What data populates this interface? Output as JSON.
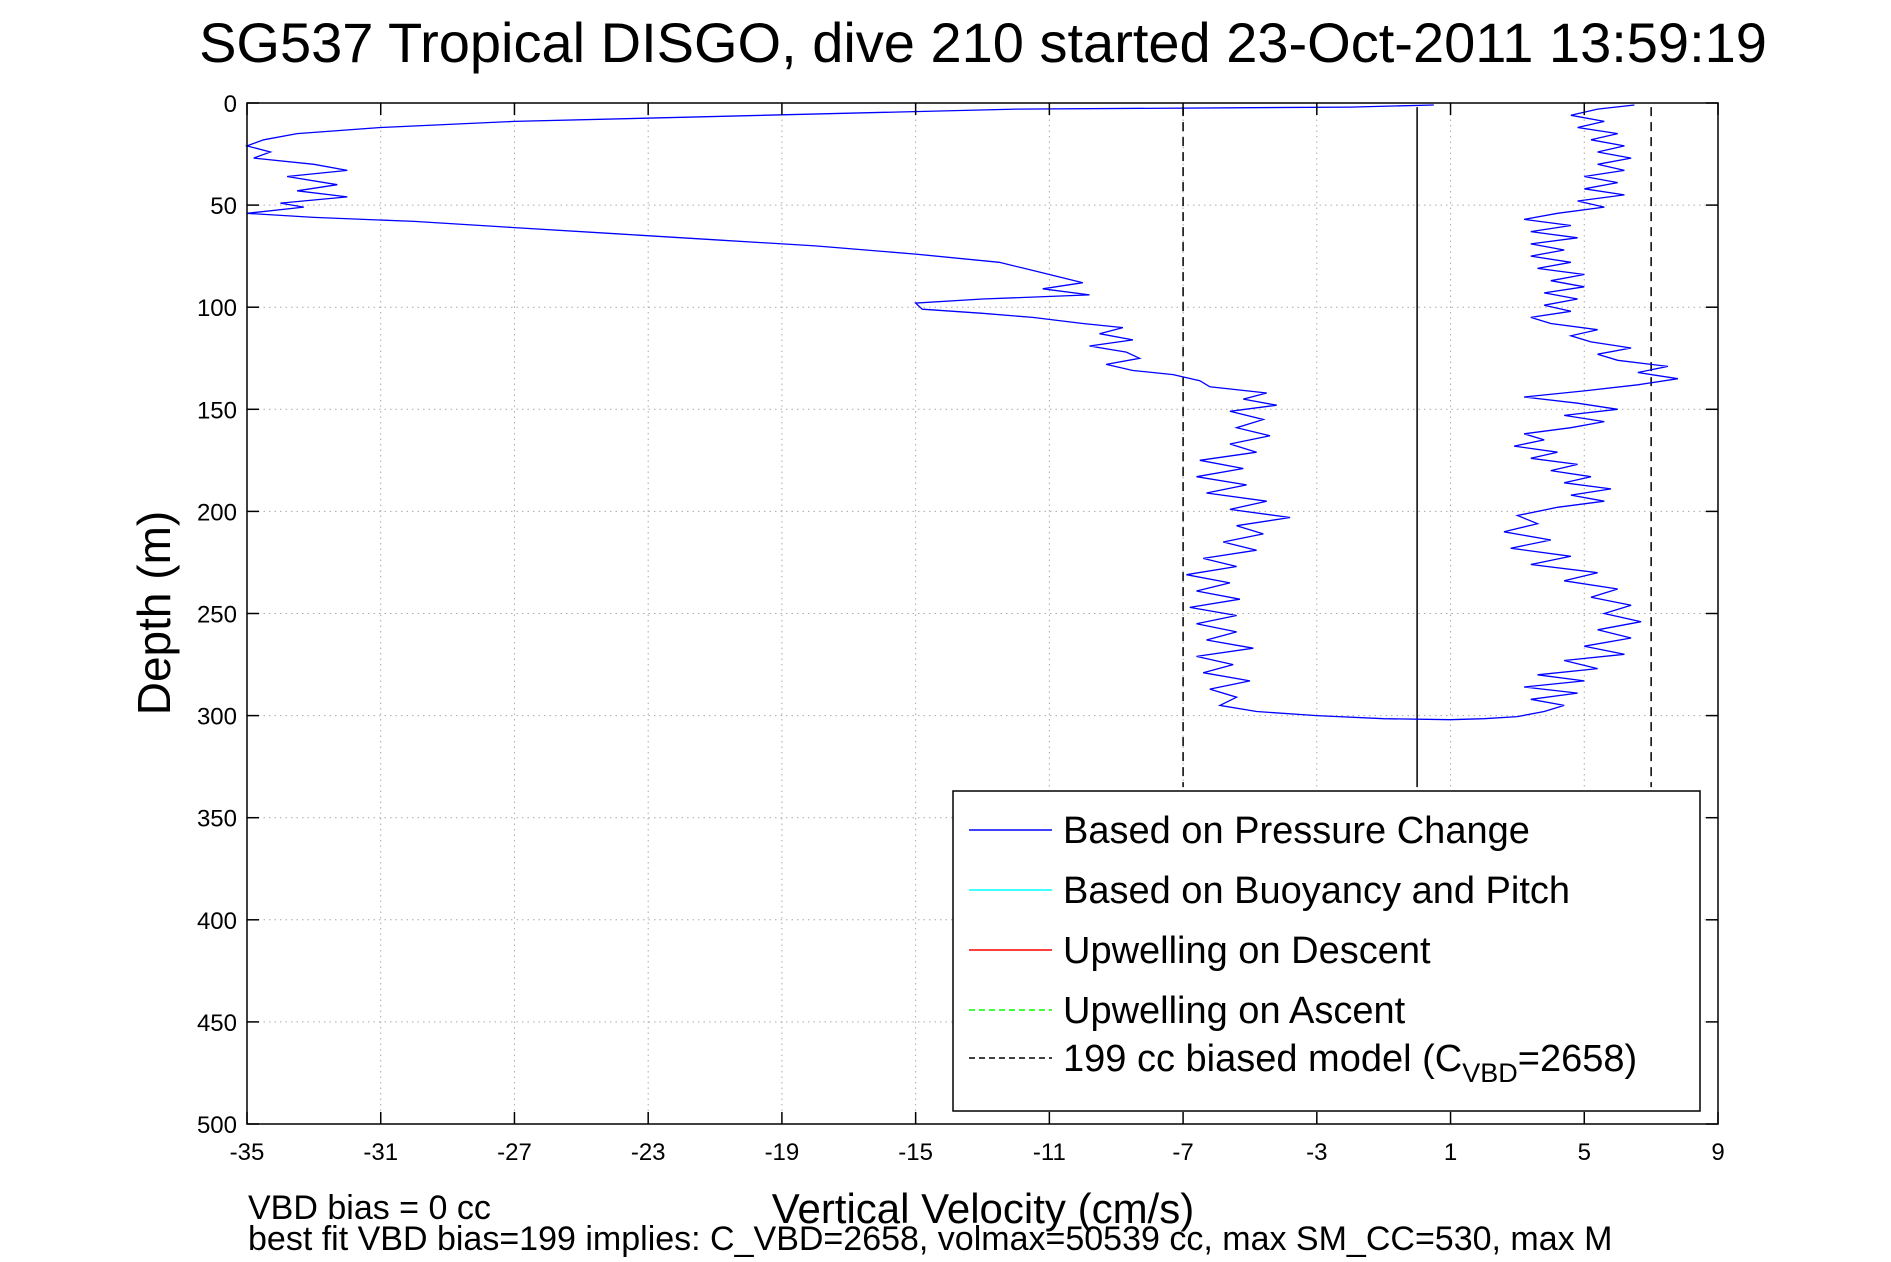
{
  "chart_data": {
    "type": "line",
    "title": "SG537 Tropical DISGO, dive 210 started 23-Oct-2011 13:59:19",
    "xlabel": "Vertical Velocity (cm/s)",
    "ylabel": "Depth (m)",
    "xlim": [
      -35,
      9
    ],
    "ylim": [
      0,
      500
    ],
    "y_reversed": true,
    "x_ticks": [
      -35,
      -31,
      -27,
      -23,
      -19,
      -15,
      -11,
      -7,
      -3,
      1,
      5,
      9
    ],
    "y_ticks": [
      0,
      50,
      100,
      150,
      200,
      250,
      300,
      350,
      400,
      450,
      500
    ],
    "grid": true,
    "legend_placement": "bottom-right",
    "legend": [
      {
        "label": "Based on Pressure Change",
        "color": "#0000ff",
        "dash": "solid"
      },
      {
        "label": "Based on Buoyancy and Pitch",
        "color": "#00ffff",
        "dash": "solid"
      },
      {
        "label": "Upwelling on Descent",
        "color": "#ff0000",
        "dash": "solid"
      },
      {
        "label": "Upwelling on Ascent",
        "color": "#00ff00",
        "dash": "dashed"
      },
      {
        "label_main": "199 cc biased model (C",
        "label_sub": "VBD",
        "label_tail": "=2658)",
        "color": "#000000",
        "dash": "dashed"
      }
    ],
    "reference_lines": [
      {
        "x": -7,
        "dash": "dashed",
        "color": "#000000"
      },
      {
        "x": 7,
        "dash": "dashed",
        "color": "#000000"
      },
      {
        "x": 0,
        "dash": "solid",
        "color": "#000000"
      }
    ],
    "series": [
      {
        "name": "Based on Pressure Change",
        "color": "#0000ff",
        "points": [
          [
            0.5,
            1
          ],
          [
            -2,
            2
          ],
          [
            -12,
            3
          ],
          [
            -17,
            5
          ],
          [
            -22,
            7
          ],
          [
            -27,
            9
          ],
          [
            -31,
            12
          ],
          [
            -33.5,
            15
          ],
          [
            -34.5,
            18
          ],
          [
            -35,
            21
          ],
          [
            -34.3,
            24
          ],
          [
            -34.8,
            27
          ],
          [
            -33,
            30
          ],
          [
            -32,
            33
          ],
          [
            -33.8,
            36
          ],
          [
            -32.3,
            40
          ],
          [
            -33.5,
            43
          ],
          [
            -32,
            46
          ],
          [
            -34,
            49
          ],
          [
            -33.3,
            51
          ],
          [
            -35,
            54
          ],
          [
            -33,
            56
          ],
          [
            -30,
            58
          ],
          [
            -27,
            61
          ],
          [
            -24,
            64
          ],
          [
            -21,
            67
          ],
          [
            -18,
            70
          ],
          [
            -15,
            74
          ],
          [
            -12.5,
            78
          ],
          [
            -11.5,
            82
          ],
          [
            -10.5,
            86
          ],
          [
            -10,
            88
          ],
          [
            -11.2,
            91
          ],
          [
            -9.8,
            94
          ],
          [
            -13,
            96
          ],
          [
            -15,
            98
          ],
          [
            -14.8,
            101
          ],
          [
            -13,
            103
          ],
          [
            -11.5,
            105
          ],
          [
            -10,
            108
          ],
          [
            -8.8,
            110
          ],
          [
            -9.5,
            113
          ],
          [
            -8.5,
            116
          ],
          [
            -9.8,
            119
          ],
          [
            -8.7,
            122
          ],
          [
            -8.3,
            125
          ],
          [
            -9.3,
            128
          ],
          [
            -8.5,
            131
          ],
          [
            -7.3,
            133
          ],
          [
            -6.5,
            136
          ],
          [
            -6.2,
            139
          ],
          [
            -4.5,
            142
          ],
          [
            -5.2,
            145
          ],
          [
            -4.2,
            148
          ],
          [
            -5.6,
            151
          ],
          [
            -4.6,
            155
          ],
          [
            -5.4,
            159
          ],
          [
            -4.4,
            163
          ],
          [
            -5.6,
            167
          ],
          [
            -4.8,
            171
          ],
          [
            -6.5,
            175
          ],
          [
            -5.2,
            179
          ],
          [
            -6.6,
            183
          ],
          [
            -5.1,
            187
          ],
          [
            -6.3,
            191
          ],
          [
            -4.5,
            195
          ],
          [
            -5.6,
            199
          ],
          [
            -3.8,
            203
          ],
          [
            -5.4,
            207
          ],
          [
            -4.6,
            211
          ],
          [
            -5.8,
            215
          ],
          [
            -4.8,
            219
          ],
          [
            -6.4,
            223
          ],
          [
            -5.4,
            227
          ],
          [
            -6.9,
            231
          ],
          [
            -5.6,
            235
          ],
          [
            -6.6,
            239
          ],
          [
            -5.3,
            243
          ],
          [
            -6.8,
            247
          ],
          [
            -5.4,
            251
          ],
          [
            -6.6,
            255
          ],
          [
            -5.4,
            259
          ],
          [
            -6.3,
            263
          ],
          [
            -4.9,
            267
          ],
          [
            -6.6,
            271
          ],
          [
            -5.5,
            275
          ],
          [
            -6.4,
            279
          ],
          [
            -5.0,
            283
          ],
          [
            -6.2,
            287
          ],
          [
            -5.4,
            291
          ],
          [
            -5.9,
            295
          ],
          [
            -4.8,
            298
          ],
          [
            -3,
            300
          ],
          [
            -1,
            301.5
          ],
          [
            1,
            302
          ],
          [
            2,
            301.5
          ],
          [
            3,
            300.5
          ],
          [
            3.8,
            298
          ],
          [
            4.4,
            295
          ],
          [
            3.4,
            292
          ],
          [
            4.8,
            289
          ],
          [
            3.2,
            286
          ],
          [
            5.0,
            283
          ],
          [
            3.6,
            280
          ],
          [
            5.4,
            277
          ],
          [
            4.4,
            273
          ],
          [
            6.2,
            270
          ],
          [
            5.0,
            266
          ],
          [
            6.4,
            262
          ],
          [
            5.4,
            258
          ],
          [
            6.7,
            254
          ],
          [
            5.6,
            250
          ],
          [
            6.4,
            246
          ],
          [
            5.2,
            242
          ],
          [
            6.0,
            238
          ],
          [
            4.4,
            234
          ],
          [
            5.4,
            230
          ],
          [
            3.4,
            226
          ],
          [
            4.6,
            222
          ],
          [
            2.8,
            218
          ],
          [
            4.0,
            214
          ],
          [
            2.6,
            210
          ],
          [
            3.6,
            206
          ],
          [
            3.0,
            202
          ],
          [
            4.2,
            198
          ],
          [
            5.6,
            195
          ],
          [
            4.6,
            192
          ],
          [
            5.8,
            189
          ],
          [
            4.4,
            186
          ],
          [
            5.2,
            183
          ],
          [
            4.0,
            180
          ],
          [
            4.8,
            177
          ],
          [
            3.4,
            174
          ],
          [
            4.2,
            171
          ],
          [
            2.9,
            168
          ],
          [
            3.8,
            165
          ],
          [
            3.2,
            162
          ],
          [
            4.6,
            159
          ],
          [
            5.6,
            156
          ],
          [
            4.4,
            153
          ],
          [
            6.0,
            150
          ],
          [
            4.8,
            147
          ],
          [
            3.2,
            144
          ],
          [
            5.0,
            141
          ],
          [
            6.6,
            138
          ],
          [
            7.8,
            135
          ],
          [
            6.6,
            132
          ],
          [
            7.5,
            129
          ],
          [
            6.0,
            126
          ],
          [
            5.4,
            123
          ],
          [
            6.4,
            120
          ],
          [
            5.2,
            117
          ],
          [
            4.6,
            114
          ],
          [
            5.4,
            111
          ],
          [
            4.0,
            108
          ],
          [
            3.4,
            105
          ],
          [
            4.6,
            102
          ],
          [
            3.8,
            99
          ],
          [
            4.8,
            96
          ],
          [
            3.8,
            93
          ],
          [
            5.0,
            90
          ],
          [
            4.0,
            87
          ],
          [
            5.0,
            84
          ],
          [
            3.6,
            81
          ],
          [
            4.6,
            78
          ],
          [
            3.4,
            75
          ],
          [
            4.4,
            72
          ],
          [
            3.4,
            69
          ],
          [
            4.8,
            66
          ],
          [
            3.4,
            63
          ],
          [
            4.6,
            60
          ],
          [
            3.2,
            57
          ],
          [
            4.2,
            54
          ],
          [
            5.6,
            51
          ],
          [
            4.8,
            48
          ],
          [
            6.2,
            45
          ],
          [
            5.0,
            42
          ],
          [
            6.0,
            39
          ],
          [
            5.0,
            36
          ],
          [
            6.2,
            33
          ],
          [
            5.4,
            30
          ],
          [
            6.4,
            27
          ],
          [
            5.4,
            24
          ],
          [
            6.2,
            21
          ],
          [
            5.2,
            18
          ],
          [
            6.0,
            15
          ],
          [
            4.8,
            12
          ],
          [
            5.6,
            9
          ],
          [
            4.6,
            6
          ],
          [
            5.4,
            3
          ],
          [
            6.5,
            1
          ]
        ]
      }
    ]
  },
  "footer": {
    "line1": "VBD bias = 0 cc",
    "line2": "best fit VBD bias=199 implies: C_VBD=2658, volmax=50539 cc, max SM_CC=530, max M"
  }
}
